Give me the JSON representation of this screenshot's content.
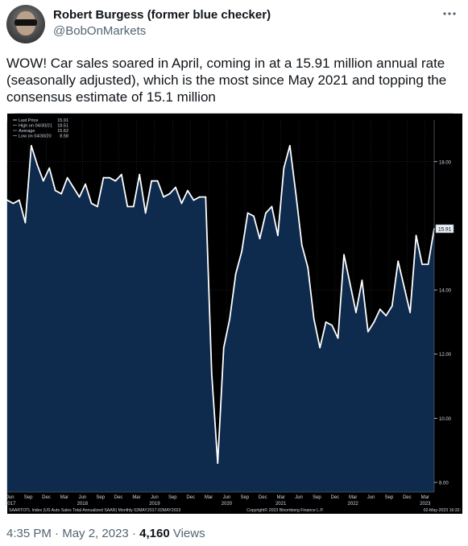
{
  "author": {
    "name": "Robert Burgess (former blue checker)",
    "handle": "@BobOnMarkets",
    "more_icon": "more-icon"
  },
  "tweet": {
    "text": "WOW! Car sales soared in April, coming in at a 15.91 million annual rate (seasonally adjusted), which is the most since May 2021 and topping the consensus estimate of 15.1 million",
    "time": "4:35 PM",
    "date": "May 2, 2023",
    "separator": "·",
    "views_count": "4,160",
    "views_label": "Views"
  },
  "chart_data": {
    "type": "area",
    "title": "",
    "legend": [
      {
        "label": "Last Price",
        "value": "15.91"
      },
      {
        "label": "High on 04/30/21",
        "value": "18.51"
      },
      {
        "label": "Average",
        "value": "15.62"
      },
      {
        "label": "Low on 04/30/20",
        "value": "8.58"
      }
    ],
    "last_price_label": "15.91",
    "footer_left": "SAARTOTL Index (US Auto Sales Total Annualized SAAR)  Monthly 02MAY2017-02MAY2023",
    "footer_center": "Copyright© 2023 Bloomberg Finance L.P.",
    "footer_right": "02-May-2023 16:32:",
    "ylim": [
      7.7,
      19.3
    ],
    "y_ticks": [
      "8.00",
      "10.00",
      "12.00",
      "14.00",
      "18.00"
    ],
    "y_tick_values": [
      8,
      10,
      12,
      14,
      18
    ],
    "x_ticks": [
      {
        "label": "Jun",
        "index": 0.5,
        "year": "2017"
      },
      {
        "label": "Sep",
        "index": 3.5
      },
      {
        "label": "Dec",
        "index": 6.5
      },
      {
        "label": "Mar",
        "index": 9.5
      },
      {
        "label": "Jun",
        "index": 12.5,
        "year": "2018"
      },
      {
        "label": "Sep",
        "index": 15.5
      },
      {
        "label": "Dec",
        "index": 18.5
      },
      {
        "label": "Mar",
        "index": 21.5
      },
      {
        "label": "Jun",
        "index": 24.5,
        "year": "2019"
      },
      {
        "label": "Sep",
        "index": 27.5
      },
      {
        "label": "Dec",
        "index": 30.5
      },
      {
        "label": "Mar",
        "index": 33.5
      },
      {
        "label": "Jun",
        "index": 36.5,
        "year": "2020"
      },
      {
        "label": "Sep",
        "index": 39.5
      },
      {
        "label": "Dec",
        "index": 42.5
      },
      {
        "label": "Mar",
        "index": 45.5,
        "year": "2021"
      },
      {
        "label": "Jun",
        "index": 48.5
      },
      {
        "label": "Sep",
        "index": 51.5
      },
      {
        "label": "Dec",
        "index": 54.5
      },
      {
        "label": "Mar",
        "index": 57.5,
        "year": "2022"
      },
      {
        "label": "Jun",
        "index": 60.5
      },
      {
        "label": "Sep",
        "index": 63.5
      },
      {
        "label": "Dec",
        "index": 66.5
      },
      {
        "label": "Mar",
        "index": 69.5,
        "year": "2023"
      }
    ],
    "series": [
      {
        "values": [
          16.8,
          16.7,
          16.8,
          16.1,
          18.5,
          17.9,
          17.4,
          17.8,
          17.1,
          17.0,
          17.5,
          17.2,
          16.9,
          17.3,
          16.7,
          16.6,
          17.5,
          17.5,
          17.4,
          17.6,
          16.6,
          16.6,
          17.6,
          16.4,
          17.4,
          17.4,
          16.9,
          17.0,
          17.2,
          16.7,
          17.1,
          16.8,
          16.9,
          16.9,
          11.4,
          8.6,
          12.2,
          13.1,
          14.5,
          15.2,
          16.4,
          16.3,
          15.6,
          16.4,
          16.6,
          15.7,
          17.8,
          18.5,
          17.0,
          15.4,
          14.7,
          13.1,
          12.2,
          13.0,
          12.9,
          12.5,
          15.1,
          14.2,
          13.3,
          14.3,
          12.7,
          13.0,
          13.4,
          13.2,
          13.5,
          14.9,
          14.1,
          13.3,
          15.7,
          14.8,
          14.8,
          15.91
        ]
      }
    ],
    "colors": {
      "line": "#ffffff",
      "fill": "#0e2a4d",
      "background": "#000000",
      "axis_text": "#cfd6e0",
      "grid": "#2d3440"
    }
  }
}
